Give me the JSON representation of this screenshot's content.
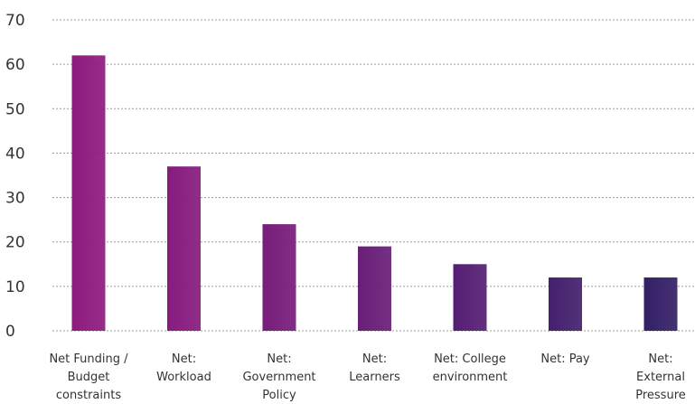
{
  "chart_data": {
    "type": "bar",
    "categories": [
      "Net Funding / Budget constraints",
      "Net: Workload",
      "Net: Government Policy",
      "Net: Learners",
      "Net: College environment",
      "Net: Pay",
      "Net: External Pressure"
    ],
    "category_lines": [
      [
        "Net Funding /",
        "Budget",
        "constraints"
      ],
      [
        "Net:",
        "Workload"
      ],
      [
        "Net:",
        "Government",
        "Policy"
      ],
      [
        "Net:",
        "Learners"
      ],
      [
        "Net: College",
        "environment"
      ],
      [
        "Net: Pay"
      ],
      [
        "Net:",
        "External",
        "Pressure"
      ]
    ],
    "values": [
      62,
      37,
      24,
      19,
      15,
      12,
      12
    ],
    "ylim": [
      0,
      70
    ],
    "yticks": [
      0,
      10,
      20,
      30,
      40,
      50,
      60,
      70
    ],
    "grid": true,
    "colors": [
      "#8e1b7e",
      "#861b7e",
      "#771c7b",
      "#691e78",
      "#551e73",
      "#44206d",
      "#341f66"
    ]
  }
}
